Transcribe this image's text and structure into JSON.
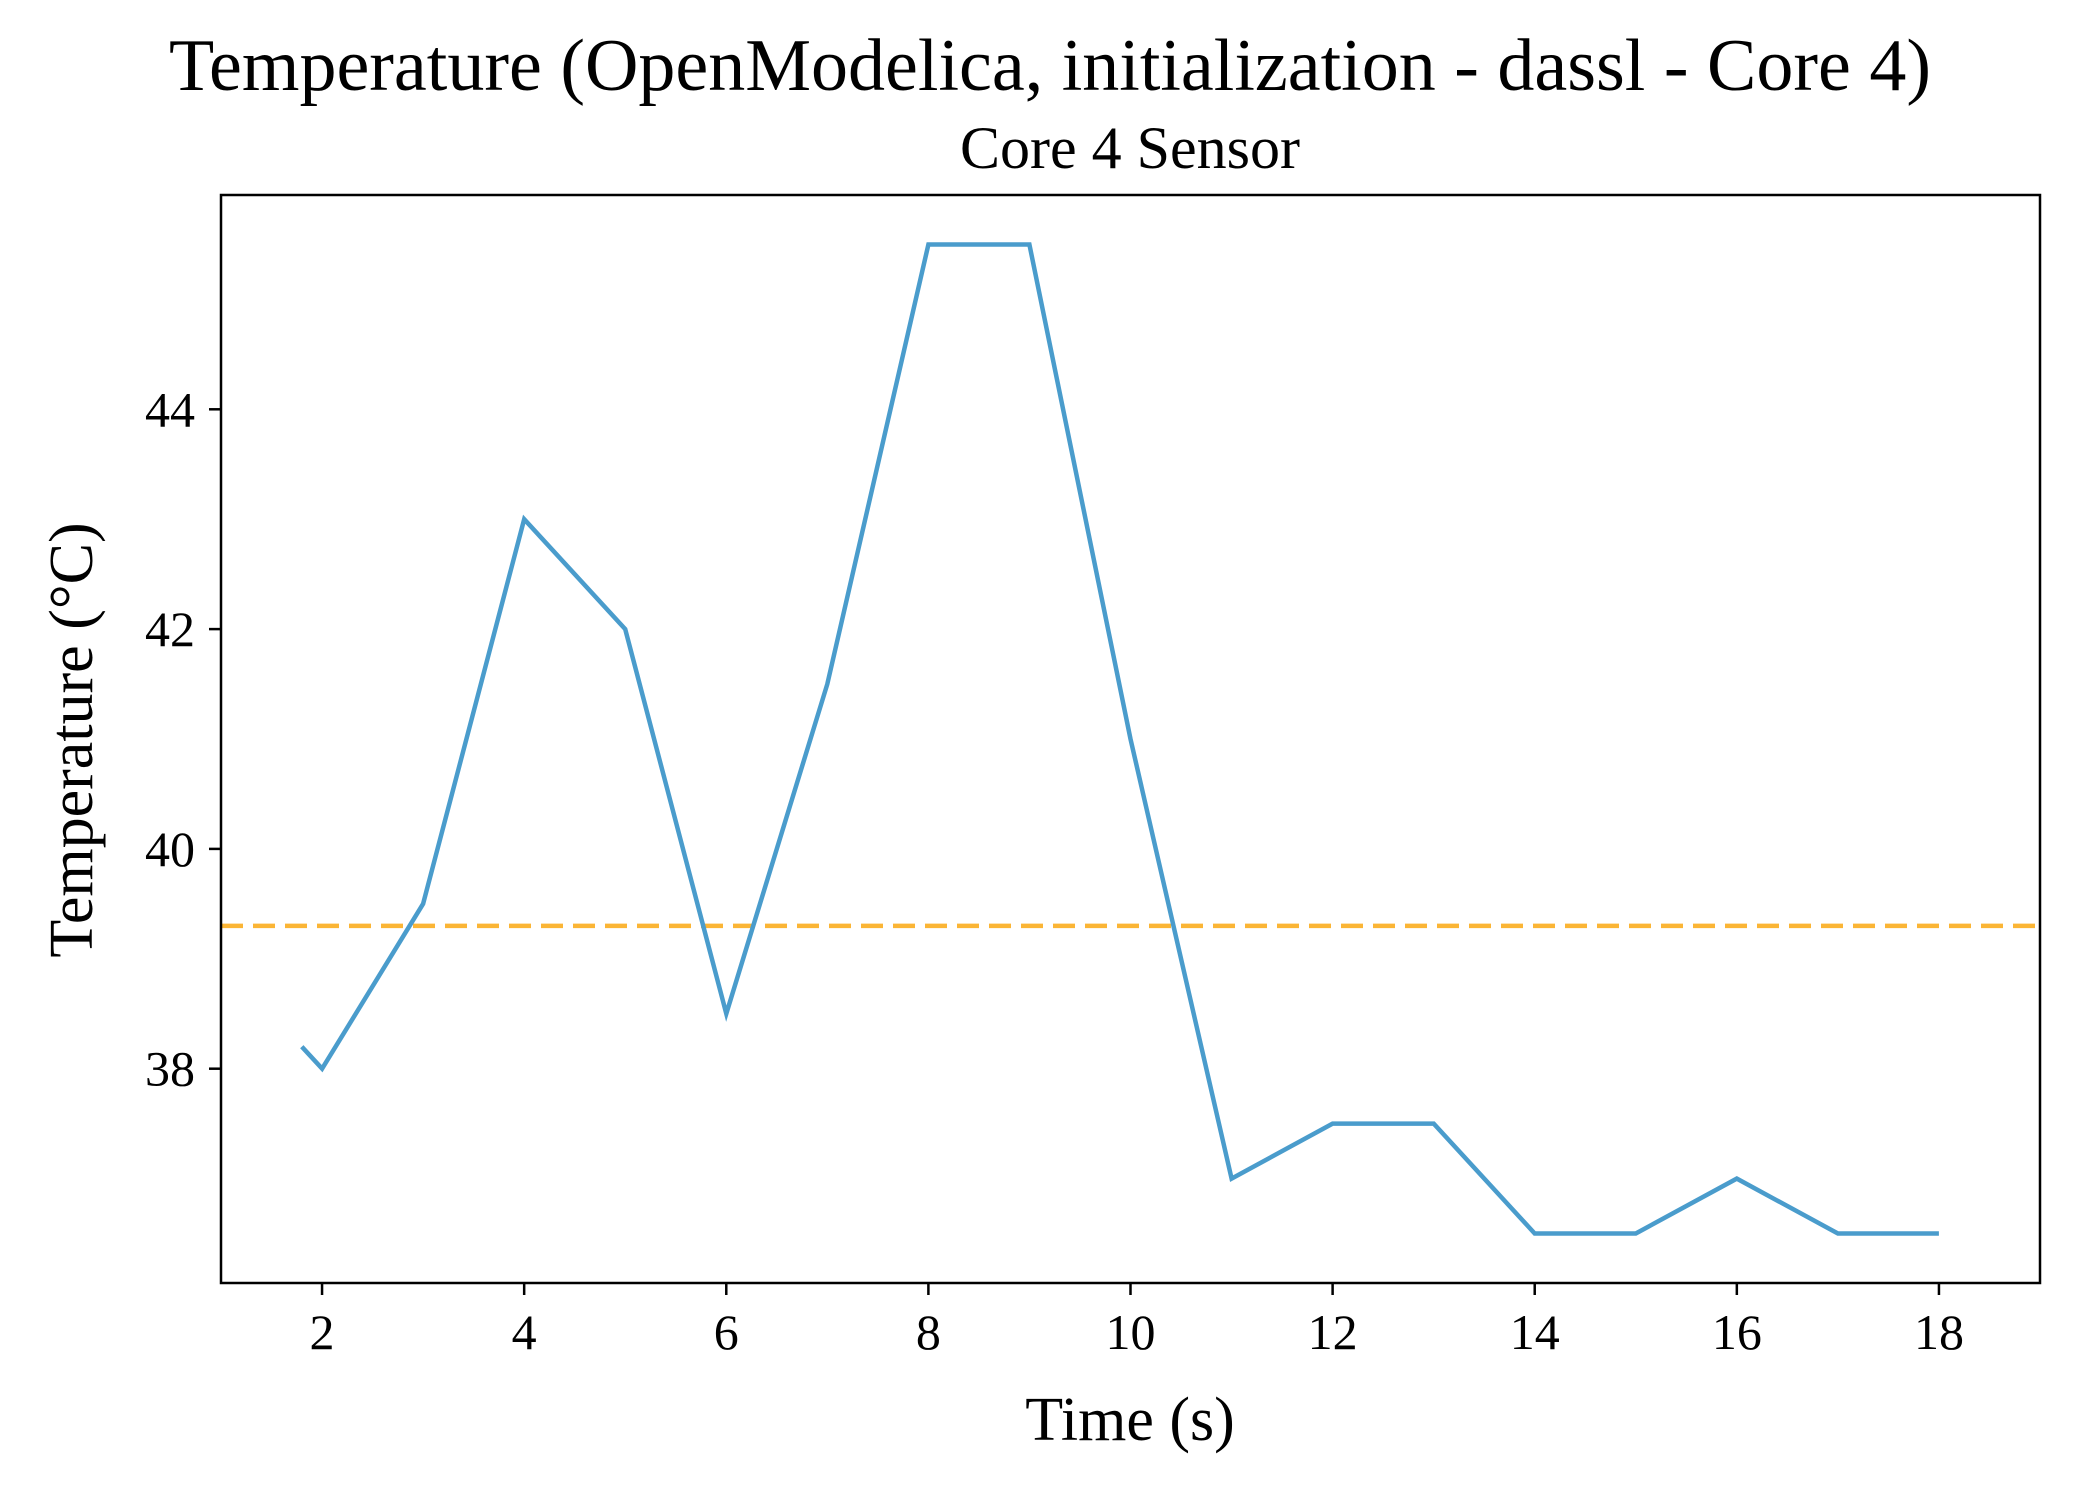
{
  "chart_data": {
    "type": "line",
    "title": "Temperature (OpenModelica, initialization - dassl - Core 4)",
    "subtitle": "Core 4 Sensor",
    "xlabel": "Time (s)",
    "ylabel": "Temperature (°C)",
    "xlim": [
      1,
      19
    ],
    "ylim": [
      36.05,
      45.95
    ],
    "x_ticks": [
      2,
      4,
      6,
      8,
      10,
      12,
      14,
      16,
      18
    ],
    "y_ticks": [
      38,
      40,
      42,
      44
    ],
    "grid": false,
    "series": [
      {
        "color": "#4a9ccc",
        "style": "solid",
        "x": [
          1.8,
          2,
          3,
          4,
          5,
          6,
          7,
          8,
          9,
          10,
          11,
          12,
          13,
          14,
          15,
          16,
          17,
          18
        ],
        "y": [
          38.2,
          38.0,
          39.5,
          43.0,
          42.0,
          38.5,
          41.5,
          45.5,
          45.5,
          41.0,
          37.0,
          37.5,
          37.5,
          36.5,
          36.5,
          37.0,
          36.5,
          36.5
        ]
      }
    ],
    "reference_line": {
      "orientation": "horizontal",
      "y": 39.3,
      "color": "#fbb535",
      "style": "dashed"
    }
  }
}
